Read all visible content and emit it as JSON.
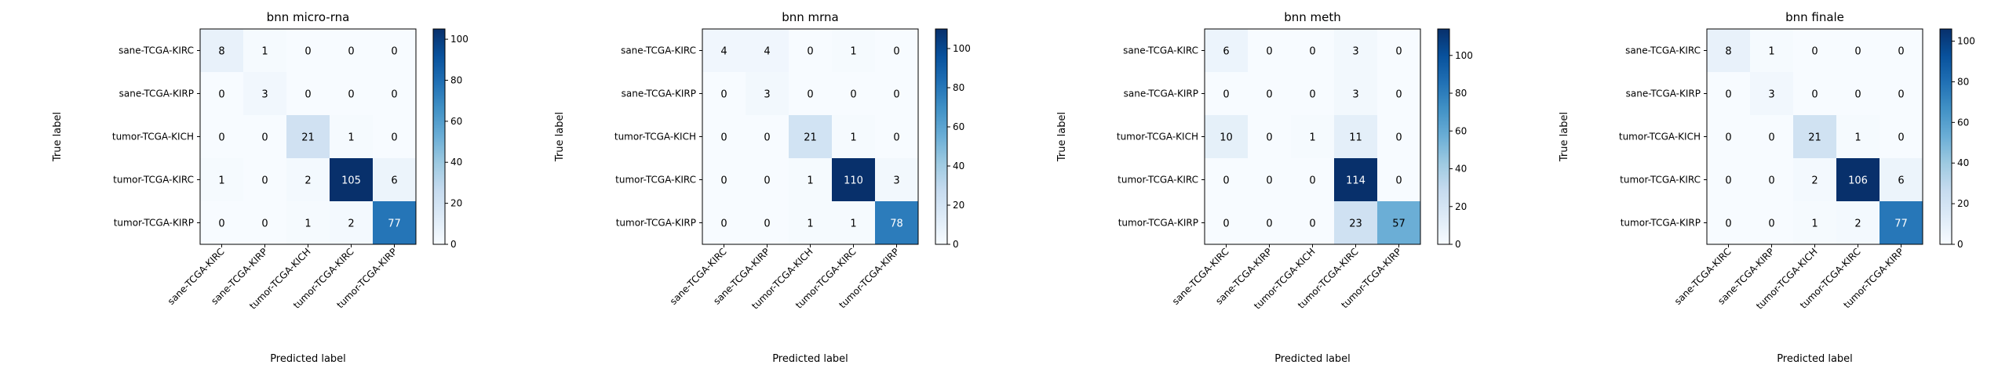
{
  "colors": {
    "scale_low": "#f7fbff",
    "scale_high": "#08306b",
    "text_dark": "#000000",
    "text_light": "#ffffff"
  },
  "chart_data": [
    {
      "type": "heatmap",
      "title": "bnn micro-rna",
      "xlabel": "Predicted label",
      "ylabel": "True label",
      "categories": [
        "sane-TCGA-KIRC",
        "sane-TCGA-KIRP",
        "tumor-TCGA-KICH",
        "tumor-TCGA-KIRC",
        "tumor-TCGA-KIRP"
      ],
      "matrix": [
        [
          8,
          1,
          0,
          0,
          0
        ],
        [
          0,
          3,
          0,
          0,
          0
        ],
        [
          0,
          0,
          21,
          1,
          0
        ],
        [
          1,
          0,
          2,
          105,
          6
        ],
        [
          0,
          0,
          1,
          2,
          77
        ]
      ],
      "colorbar": {
        "min": 0,
        "max": 105,
        "ticks": [
          0,
          20,
          40,
          60,
          80,
          100
        ]
      }
    },
    {
      "type": "heatmap",
      "title": "bnn mrna",
      "xlabel": "Predicted label",
      "ylabel": "True label",
      "categories": [
        "sane-TCGA-KIRC",
        "sane-TCGA-KIRP",
        "tumor-TCGA-KICH",
        "tumor-TCGA-KIRC",
        "tumor-TCGA-KIRP"
      ],
      "matrix": [
        [
          4,
          4,
          0,
          1,
          0
        ],
        [
          0,
          3,
          0,
          0,
          0
        ],
        [
          0,
          0,
          21,
          1,
          0
        ],
        [
          0,
          0,
          1,
          110,
          3
        ],
        [
          0,
          0,
          1,
          1,
          78
        ]
      ],
      "colorbar": {
        "min": 0,
        "max": 110,
        "ticks": [
          0,
          20,
          40,
          60,
          80,
          100
        ]
      }
    },
    {
      "type": "heatmap",
      "title": "bnn meth",
      "xlabel": "Predicted label",
      "ylabel": "True label",
      "categories": [
        "sane-TCGA-KIRC",
        "sane-TCGA-KIRP",
        "tumor-TCGA-KICH",
        "tumor-TCGA-KIRC",
        "tumor-TCGA-KIRP"
      ],
      "matrix": [
        [
          6,
          0,
          0,
          3,
          0
        ],
        [
          0,
          0,
          0,
          3,
          0
        ],
        [
          10,
          0,
          1,
          11,
          0
        ],
        [
          0,
          0,
          0,
          114,
          0
        ],
        [
          0,
          0,
          0,
          23,
          57
        ]
      ],
      "colorbar": {
        "min": 0,
        "max": 114,
        "ticks": [
          0,
          20,
          40,
          60,
          80,
          100
        ]
      }
    },
    {
      "type": "heatmap",
      "title": "bnn finale",
      "xlabel": "Predicted label",
      "ylabel": "True label",
      "categories": [
        "sane-TCGA-KIRC",
        "sane-TCGA-KIRP",
        "tumor-TCGA-KICH",
        "tumor-TCGA-KIRC",
        "tumor-TCGA-KIRP"
      ],
      "matrix": [
        [
          8,
          1,
          0,
          0,
          0
        ],
        [
          0,
          3,
          0,
          0,
          0
        ],
        [
          0,
          0,
          21,
          1,
          0
        ],
        [
          0,
          0,
          2,
          106,
          6
        ],
        [
          0,
          0,
          1,
          2,
          77
        ]
      ],
      "colorbar": {
        "min": 0,
        "max": 106,
        "ticks": [
          0,
          20,
          40,
          60,
          80,
          100
        ]
      }
    }
  ]
}
